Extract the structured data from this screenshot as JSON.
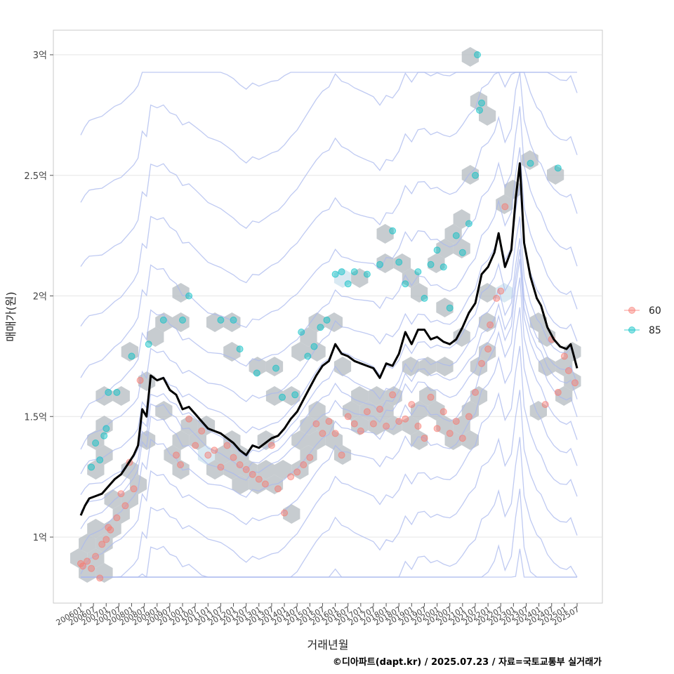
{
  "chart_data": {
    "type": "scatter",
    "title": "",
    "xlabel": "거래년월",
    "ylabel": "매매가(원)",
    "caption": "©디아파트(dapt.kr) / 2025.07.23 / 자료=국토교통부 실거래가",
    "x_ticks": [
      "200601",
      "200607",
      "200701",
      "200707",
      "200801",
      "200807",
      "200901",
      "200907",
      "201001",
      "201007",
      "201101",
      "201107",
      "201201",
      "201207",
      "201301",
      "201307",
      "201401",
      "201407",
      "201501",
      "201507",
      "201601",
      "201607",
      "201701",
      "201707",
      "201801",
      "201807",
      "201901",
      "201907",
      "202001",
      "202007",
      "202101",
      "202107",
      "202201",
      "202207",
      "202301",
      "202307",
      "202401",
      "202407",
      "202501",
      "202507"
    ],
    "y_ticks": [
      {
        "value": 1.0,
        "label": "1억"
      },
      {
        "value": 1.5,
        "label": "1.5억"
      },
      {
        "value": 2.0,
        "label": "2억"
      },
      {
        "value": 2.5,
        "label": "2.5억"
      },
      {
        "value": 3.0,
        "label": "3억"
      }
    ],
    "ylim": [
      0.72,
      3.1
    ],
    "grid": true,
    "legend": {
      "placement": "right",
      "entries": [
        {
          "label": "60",
          "color": "#F8766D"
        },
        {
          "label": "85",
          "color": "#00BFC4"
        }
      ]
    },
    "trend_line": {
      "name": "",
      "color": "#000000",
      "values": [
        [
          "2006-01",
          1.09
        ],
        [
          "2006-03",
          1.13
        ],
        [
          "2006-05",
          1.16
        ],
        [
          "2006-08",
          1.17
        ],
        [
          "2006-11",
          1.18
        ],
        [
          "2007-02",
          1.21
        ],
        [
          "2007-05",
          1.24
        ],
        [
          "2007-08",
          1.26
        ],
        [
          "2007-11",
          1.3
        ],
        [
          "2008-02",
          1.34
        ],
        [
          "2008-04",
          1.38
        ],
        [
          "2008-06",
          1.53
        ],
        [
          "2008-08",
          1.5
        ],
        [
          "2008-10",
          1.67
        ],
        [
          "2009-01",
          1.65
        ],
        [
          "2009-04",
          1.66
        ],
        [
          "2009-07",
          1.61
        ],
        [
          "2009-10",
          1.59
        ],
        [
          "2010-01",
          1.53
        ],
        [
          "2010-04",
          1.54
        ],
        [
          "2010-07",
          1.51
        ],
        [
          "2010-10",
          1.48
        ],
        [
          "2011-01",
          1.45
        ],
        [
          "2011-04",
          1.44
        ],
        [
          "2011-07",
          1.43
        ],
        [
          "2011-10",
          1.41
        ],
        [
          "2012-01",
          1.39
        ],
        [
          "2012-04",
          1.36
        ],
        [
          "2012-07",
          1.34
        ],
        [
          "2012-10",
          1.38
        ],
        [
          "2013-01",
          1.37
        ],
        [
          "2013-04",
          1.39
        ],
        [
          "2013-07",
          1.41
        ],
        [
          "2013-10",
          1.42
        ],
        [
          "2014-01",
          1.45
        ],
        [
          "2014-04",
          1.49
        ],
        [
          "2014-07",
          1.52
        ],
        [
          "2014-10",
          1.57
        ],
        [
          "2015-01",
          1.62
        ],
        [
          "2015-04",
          1.67
        ],
        [
          "2015-07",
          1.71
        ],
        [
          "2015-10",
          1.73
        ],
        [
          "2016-01",
          1.8
        ],
        [
          "2016-04",
          1.76
        ],
        [
          "2016-07",
          1.75
        ],
        [
          "2016-10",
          1.73
        ],
        [
          "2017-01",
          1.72
        ],
        [
          "2017-04",
          1.71
        ],
        [
          "2017-07",
          1.7
        ],
        [
          "2017-10",
          1.66
        ],
        [
          "2018-01",
          1.72
        ],
        [
          "2018-04",
          1.71
        ],
        [
          "2018-07",
          1.76
        ],
        [
          "2018-10",
          1.85
        ],
        [
          "2019-01",
          1.8
        ],
        [
          "2019-04",
          1.86
        ],
        [
          "2019-07",
          1.86
        ],
        [
          "2019-10",
          1.82
        ],
        [
          "2020-01",
          1.83
        ],
        [
          "2020-04",
          1.81
        ],
        [
          "2020-07",
          1.8
        ],
        [
          "2020-10",
          1.82
        ],
        [
          "2021-01",
          1.87
        ],
        [
          "2021-04",
          1.93
        ],
        [
          "2021-07",
          1.97
        ],
        [
          "2021-10",
          2.09
        ],
        [
          "2022-01",
          2.12
        ],
        [
          "2022-04",
          2.18
        ],
        [
          "2022-06",
          2.26
        ],
        [
          "2022-09",
          2.12
        ],
        [
          "2022-12",
          2.19
        ],
        [
          "2023-02",
          2.4
        ],
        [
          "2023-04",
          2.55
        ],
        [
          "2023-06",
          2.22
        ],
        [
          "2023-09",
          2.08
        ],
        [
          "2023-12",
          1.99
        ],
        [
          "2024-02",
          1.96
        ],
        [
          "2024-05",
          1.87
        ],
        [
          "2024-08",
          1.82
        ],
        [
          "2024-11",
          1.79
        ],
        [
          "2025-02",
          1.78
        ],
        [
          "2025-04",
          1.8
        ],
        [
          "2025-07",
          1.7
        ]
      ]
    },
    "series": [
      {
        "name": "60",
        "color": "#F8766D",
        "points": [
          [
            "2006-01",
            0.89
          ],
          [
            "2006-02",
            0.88
          ],
          [
            "2006-04",
            0.9
          ],
          [
            "2006-06",
            0.87
          ],
          [
            "2006-08",
            0.92
          ],
          [
            "2006-10",
            0.83
          ],
          [
            "2006-11",
            0.97
          ],
          [
            "2007-01",
            0.99
          ],
          [
            "2007-02",
            1.04
          ],
          [
            "2007-03",
            1.03
          ],
          [
            "2007-06",
            1.08
          ],
          [
            "2007-08",
            1.18
          ],
          [
            "2007-10",
            1.13
          ],
          [
            "2007-12",
            1.31
          ],
          [
            "2008-02",
            1.2
          ],
          [
            "2008-05",
            1.65
          ],
          [
            "2009-10",
            1.34
          ],
          [
            "2009-12",
            1.3
          ],
          [
            "2010-04",
            1.49
          ],
          [
            "2010-07",
            1.38
          ],
          [
            "2010-10",
            1.44
          ],
          [
            "2011-01",
            1.34
          ],
          [
            "2011-04",
            1.36
          ],
          [
            "2011-07",
            1.29
          ],
          [
            "2011-10",
            1.38
          ],
          [
            "2012-01",
            1.33
          ],
          [
            "2012-04",
            1.3
          ],
          [
            "2012-07",
            1.28
          ],
          [
            "2012-10",
            1.26
          ],
          [
            "2013-01",
            1.24
          ],
          [
            "2013-04",
            1.22
          ],
          [
            "2013-07",
            1.38
          ],
          [
            "2013-10",
            1.2
          ],
          [
            "2014-01",
            1.1
          ],
          [
            "2014-04",
            1.25
          ],
          [
            "2014-07",
            1.27
          ],
          [
            "2014-10",
            1.3
          ],
          [
            "2015-01",
            1.33
          ],
          [
            "2015-04",
            1.47
          ],
          [
            "2015-07",
            1.43
          ],
          [
            "2015-10",
            1.48
          ],
          [
            "2016-01",
            1.43
          ],
          [
            "2016-04",
            1.34
          ],
          [
            "2016-07",
            1.5
          ],
          [
            "2016-10",
            1.47
          ],
          [
            "2017-01",
            1.44
          ],
          [
            "2017-04",
            1.52
          ],
          [
            "2017-07",
            1.47
          ],
          [
            "2017-10",
            1.53
          ],
          [
            "2018-01",
            1.46
          ],
          [
            "2018-04",
            1.59
          ],
          [
            "2018-07",
            1.48
          ],
          [
            "2018-10",
            1.49
          ],
          [
            "2019-01",
            1.55
          ],
          [
            "2019-04",
            1.46
          ],
          [
            "2019-07",
            1.41
          ],
          [
            "2019-10",
            1.58
          ],
          [
            "2020-01",
            1.45
          ],
          [
            "2020-04",
            1.52
          ],
          [
            "2020-07",
            1.43
          ],
          [
            "2020-10",
            1.48
          ],
          [
            "2021-01",
            1.41
          ],
          [
            "2021-04",
            1.5
          ],
          [
            "2021-07",
            1.6
          ],
          [
            "2021-10",
            1.72
          ],
          [
            "2022-01",
            1.78
          ],
          [
            "2022-02",
            1.88
          ],
          [
            "2022-05",
            1.99
          ],
          [
            "2022-07",
            2.02
          ],
          [
            "2022-09",
            2.37
          ],
          [
            "2024-04",
            1.55
          ],
          [
            "2024-07",
            1.82
          ],
          [
            "2024-10",
            1.6
          ],
          [
            "2025-01",
            1.75
          ],
          [
            "2025-03",
            1.69
          ],
          [
            "2025-06",
            1.64
          ]
        ]
      },
      {
        "name": "85",
        "color": "#00BFC4",
        "points": [
          [
            "2006-06",
            1.29
          ],
          [
            "2006-08",
            1.39
          ],
          [
            "2006-10",
            1.32
          ],
          [
            "2006-12",
            1.42
          ],
          [
            "2007-01",
            1.45
          ],
          [
            "2007-02",
            1.6
          ],
          [
            "2007-06",
            1.6
          ],
          [
            "2008-01",
            1.75
          ],
          [
            "2008-09",
            1.8
          ],
          [
            "2009-04",
            1.9
          ],
          [
            "2010-01",
            1.9
          ],
          [
            "2010-04",
            2.0
          ],
          [
            "2011-07",
            1.9
          ],
          [
            "2012-01",
            1.9
          ],
          [
            "2012-04",
            1.78
          ],
          [
            "2012-12",
            1.68
          ],
          [
            "2013-09",
            1.7
          ],
          [
            "2013-12",
            1.58
          ],
          [
            "2014-06",
            1.59
          ],
          [
            "2014-09",
            1.85
          ],
          [
            "2014-12",
            1.75
          ],
          [
            "2015-03",
            1.79
          ],
          [
            "2015-06",
            1.87
          ],
          [
            "2015-09",
            1.9
          ],
          [
            "2016-01",
            2.09
          ],
          [
            "2016-04",
            2.1
          ],
          [
            "2016-07",
            2.05
          ],
          [
            "2016-10",
            2.1
          ],
          [
            "2017-04",
            2.09
          ],
          [
            "2017-10",
            2.13
          ],
          [
            "2018-04",
            2.27
          ],
          [
            "2018-07",
            2.14
          ],
          [
            "2018-10",
            2.05
          ],
          [
            "2019-04",
            2.1
          ],
          [
            "2019-07",
            1.99
          ],
          [
            "2019-10",
            2.13
          ],
          [
            "2020-01",
            2.19
          ],
          [
            "2020-04",
            2.12
          ],
          [
            "2020-07",
            1.95
          ],
          [
            "2020-10",
            2.25
          ],
          [
            "2021-01",
            2.18
          ],
          [
            "2021-04",
            2.3
          ],
          [
            "2021-07",
            2.5
          ],
          [
            "2021-09",
            2.77
          ],
          [
            "2021-10",
            2.8
          ],
          [
            "2021-08",
            3.0
          ],
          [
            "2023-09",
            2.55
          ],
          [
            "2024-10",
            2.53
          ]
        ]
      }
    ]
  }
}
